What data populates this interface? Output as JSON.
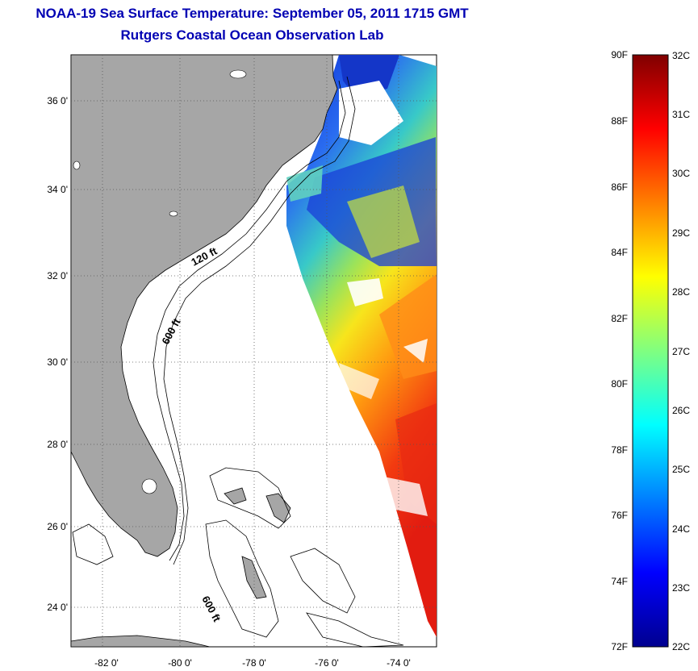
{
  "title": {
    "line1": "NOAA-19 Sea Surface Temperature:  September 05, 2011 1715 GMT",
    "line2": "Rutgers Coastal Ocean Observation Lab"
  },
  "map": {
    "lat_ticks": [
      "24 0'",
      "26 0'",
      "28 0'",
      "30 0'",
      "32 0'",
      "34 0'",
      "36 0'"
    ],
    "lon_ticks": [
      "-82 0'",
      "-80 0'",
      "-78 0'",
      "-76 0'",
      "-74 0'"
    ],
    "contour_labels": {
      "c120": "120 ft",
      "c600a": "600 ft",
      "c600b": "600 ft"
    },
    "colors": {
      "land": "#a6a6a6",
      "ocean": "#ffffff",
      "grid": "#000000"
    }
  },
  "colorbar": {
    "fahrenheit": [
      "72F",
      "74F",
      "76F",
      "78F",
      "80F",
      "82F",
      "84F",
      "86F",
      "88F",
      "90F"
    ],
    "celsius": [
      "22C",
      "23C",
      "24C",
      "25C",
      "26C",
      "27C",
      "28C",
      "29C",
      "30C",
      "31C",
      "32C"
    ],
    "colormap": "jet"
  }
}
